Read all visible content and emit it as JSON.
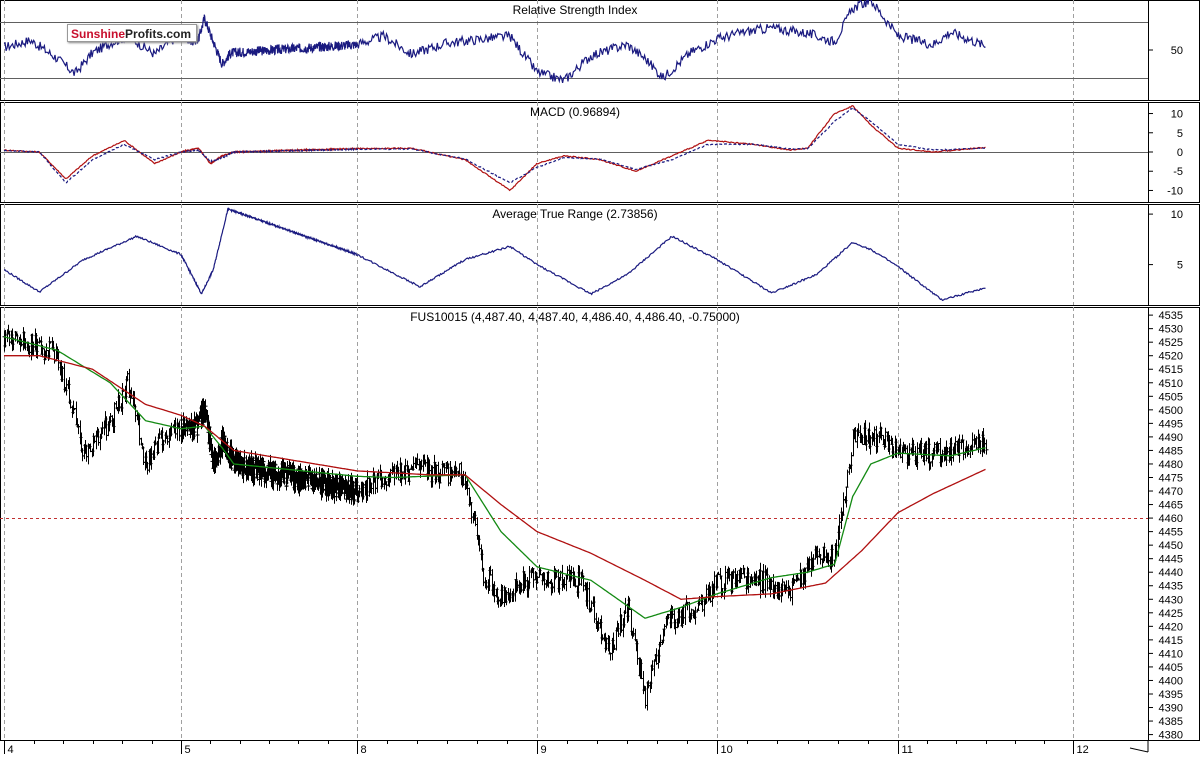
{
  "brand": {
    "part1": "Sunshine",
    "part2": "Profits.com"
  },
  "colors": {
    "blue": "#1a1a80",
    "red": "#b01010",
    "green": "#138a13",
    "bar": "#000000",
    "grid": "#a0a0a0",
    "ref": "#c03030"
  },
  "chart_data": [
    {
      "type": "line",
      "title": "Relative Strength Index",
      "ylim": [
        14,
        86
      ],
      "ytick_labels": [
        "50"
      ],
      "ytick_values": [
        50
      ],
      "ref_lines": [
        70,
        30
      ],
      "x": [
        4.0,
        4.15,
        4.3,
        4.4,
        4.5,
        4.6,
        4.7,
        4.85,
        5.0,
        5.15,
        5.3,
        5.4,
        5.55,
        5.7,
        5.85,
        8.0,
        8.15,
        8.3,
        8.5,
        8.7,
        8.85,
        9.0,
        9.15,
        9.3,
        9.5,
        9.6,
        9.7,
        9.85,
        10.0,
        10.15,
        10.3,
        10.5,
        10.65,
        10.75,
        10.85,
        11.0,
        11.2,
        11.3,
        11.5
      ],
      "series": [
        {
          "values": [
            52,
            57,
            44,
            33,
            48,
            55,
            60,
            47,
            62,
            56,
            58,
            73,
            56,
            40,
            48,
            54,
            60,
            47,
            55,
            58,
            60,
            34,
            28,
            46,
            54,
            44,
            30,
            48,
            58,
            63,
            66,
            62,
            56,
            80,
            86,
            60,
            54,
            63,
            53
          ]
        }
      ]
    },
    {
      "type": "line",
      "title": "MACD (0.96894)",
      "ylim": [
        -13,
        13
      ],
      "ytick_labels": [
        "10",
        "5",
        "0",
        "-5",
        "-10"
      ],
      "ytick_values": [
        10,
        5,
        0,
        -5,
        -10
      ],
      "ref_lines": [
        0
      ],
      "x": [
        4.0,
        4.2,
        4.35,
        4.5,
        4.68,
        4.85,
        5.0,
        5.3,
        5.5,
        5.7,
        5.9,
        8.3,
        8.6,
        8.85,
        9.0,
        9.15,
        9.35,
        9.55,
        9.75,
        9.95,
        10.2,
        10.4,
        10.5,
        10.65,
        10.75,
        10.85,
        11.0,
        11.2,
        11.5
      ],
      "series": [
        {
          "values": [
            0.5,
            0,
            -7,
            -1,
            3,
            -3,
            0,
            1,
            -3,
            -1,
            0,
            1,
            -2,
            -10,
            -3,
            -1,
            -2,
            -5,
            -1,
            3,
            2,
            0.5,
            1,
            10,
            12,
            7,
            1,
            0,
            1.2
          ]
        },
        {
          "values": [
            0.4,
            0,
            -8,
            -2,
            2,
            -2,
            0,
            0.5,
            -2.5,
            -1.5,
            0,
            0.8,
            -1.8,
            -8,
            -4,
            -1.5,
            -1.8,
            -4.5,
            -2,
            2,
            2,
            0.8,
            0.8,
            8,
            11.5,
            8,
            2,
            0.5,
            1
          ]
        }
      ]
    },
    {
      "type": "line",
      "title": "Average True Range (2.73856)",
      "ylim": [
        1,
        11
      ],
      "ytick_labels": [
        "10",
        "5"
      ],
      "ytick_values": [
        10,
        5
      ],
      "ref_lines": [],
      "x": [
        4.0,
        4.2,
        4.45,
        4.75,
        5.0,
        5.35,
        5.55,
        5.8,
        8.0,
        8.35,
        8.6,
        8.85,
        9.0,
        9.3,
        9.5,
        9.75,
        10.0,
        10.3,
        10.55,
        10.75,
        10.85,
        11.0,
        11.25,
        11.5
      ],
      "series": [
        {
          "values": [
            4.5,
            2.3,
            5.5,
            7.8,
            6.0,
            2.1,
            4.5,
            10.5,
            6.0,
            2.8,
            5.5,
            6.8,
            5.0,
            2.1,
            4.0,
            7.8,
            5.5,
            2.2,
            4.0,
            7.2,
            6.5,
            4.8,
            1.5,
            2.7
          ]
        }
      ]
    },
    {
      "type": "bar",
      "title": "FUS10015 (4,487.40, 4,487.40, 4,486.40, 4,486.40, -0.75000)",
      "ylim": [
        4378,
        4538
      ],
      "ytick_labels": [
        "4535",
        "4530",
        "4525",
        "4520",
        "4515",
        "4510",
        "4505",
        "4500",
        "4495",
        "4490",
        "4485",
        "4480",
        "4475",
        "4470",
        "4465",
        "4460",
        "4455",
        "4450",
        "4445",
        "4440",
        "4435",
        "4430",
        "4425",
        "4420",
        "4415",
        "4410",
        "4405",
        "4400",
        "4395",
        "4390",
        "4385",
        "4380"
      ],
      "ytick_values": [
        4535,
        4530,
        4525,
        4520,
        4515,
        4510,
        4505,
        4500,
        4495,
        4490,
        4485,
        4480,
        4475,
        4470,
        4465,
        4460,
        4455,
        4450,
        4445,
        4440,
        4435,
        4430,
        4425,
        4420,
        4415,
        4410,
        4405,
        4400,
        4395,
        4390,
        4385,
        4380
      ],
      "ref_lines": [
        4460
      ],
      "price_x": [
        4.0,
        4.15,
        4.3,
        4.45,
        4.6,
        4.7,
        4.8,
        4.9,
        5.0,
        5.2,
        5.4,
        5.55,
        5.7,
        5.9,
        8.0,
        8.3,
        8.6,
        8.7,
        8.8,
        8.9,
        9.1,
        9.25,
        9.4,
        9.5,
        9.6,
        9.7,
        9.9,
        10.0,
        10.2,
        10.4,
        10.55,
        10.65,
        10.75,
        10.9,
        11.0,
        11.2,
        11.3,
        11.5
      ],
      "price_close": [
        4527,
        4525,
        4520,
        4484,
        4495,
        4510,
        4480,
        4490,
        4493,
        4492,
        4500,
        4480,
        4488,
        4480,
        4470,
        4478,
        4476,
        4440,
        4430,
        4437,
        4438,
        4436,
        4410,
        4428,
        4393,
        4420,
        4428,
        4436,
        4438,
        4432,
        4446,
        4445,
        4490,
        4490,
        4484,
        4484,
        4484,
        4487
      ],
      "series": [
        {
          "x": [
            4.0,
            4.3,
            4.6,
            4.8,
            5.0,
            5.4,
            5.7,
            5.9,
            8.2,
            8.6,
            8.8,
            9.0,
            9.3,
            9.6,
            9.8,
            10.0,
            10.3,
            10.5,
            10.65,
            10.75,
            10.85,
            11.0,
            11.3,
            11.5
          ],
          "values": [
            4527,
            4522,
            4510,
            4496,
            4493,
            4494,
            4486,
            4480,
            4475,
            4476,
            4455,
            4442,
            4437,
            4423,
            4427,
            4432,
            4438,
            4440,
            4443,
            4468,
            4480,
            4484,
            4483,
            4486
          ]
        },
        {
          "x": [
            4.0,
            4.2,
            4.5,
            4.8,
            5.0,
            5.4,
            5.9,
            8.4,
            8.6,
            8.8,
            9.0,
            9.3,
            9.6,
            9.8,
            10.0,
            10.3,
            10.6,
            10.8,
            11.0,
            11.2,
            11.5
          ],
          "values": [
            4520,
            4520,
            4515,
            4502,
            4498,
            4494,
            4485,
            4476,
            4476,
            4465,
            4455,
            4447,
            4437,
            4430,
            4431,
            4432,
            4436,
            4448,
            4462,
            4469,
            4478
          ]
        }
      ]
    }
  ],
  "xaxis": {
    "ticks": [
      4,
      5,
      8,
      9,
      10,
      11,
      12
    ],
    "labels": [
      "4",
      "5",
      "8",
      "9",
      "10",
      "11",
      "12"
    ]
  }
}
